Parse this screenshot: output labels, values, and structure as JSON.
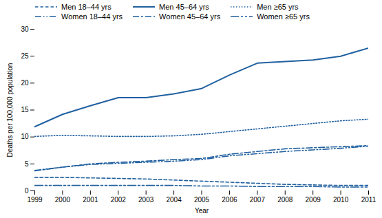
{
  "chart_data": {
    "type": "line",
    "x": [
      1999,
      2000,
      2001,
      2002,
      2003,
      2004,
      2005,
      2006,
      2007,
      2008,
      2009,
      2010,
      2011
    ],
    "series": [
      {
        "name": "Men 18–44 yrs",
        "line_style": "dashed",
        "values": [
          2.5,
          2.5,
          2.4,
          2.3,
          2.2,
          2.0,
          1.8,
          1.6,
          1.4,
          1.2,
          1.1,
          1.0,
          1.0
        ]
      },
      {
        "name": "Men 45–64 yrs",
        "line_style": "solid",
        "values": [
          11.9,
          14.2,
          15.8,
          17.3,
          17.3,
          18.0,
          19.0,
          21.5,
          23.7,
          24.0,
          24.3,
          25.0,
          26.5
        ]
      },
      {
        "name": "Men ≥65 yrs",
        "line_style": "dotted",
        "values": [
          10.1,
          10.3,
          10.2,
          10.1,
          10.1,
          10.2,
          10.5,
          11.0,
          11.5,
          12.0,
          12.5,
          13.0,
          13.3
        ]
      },
      {
        "name": "Women 18–44 yrs",
        "line_style": "dashdotdot",
        "values": [
          3.8,
          4.4,
          4.9,
          5.1,
          5.3,
          5.5,
          5.8,
          6.5,
          6.9,
          7.3,
          7.6,
          7.9,
          8.3
        ]
      },
      {
        "name": "Women 45–64 yrs",
        "line_style": "dashdot",
        "values": [
          3.7,
          4.4,
          5.0,
          5.3,
          5.5,
          5.8,
          6.0,
          6.8,
          7.3,
          7.8,
          8.0,
          8.2,
          8.4
        ]
      },
      {
        "name": "Women ≥65 yrs",
        "line_style": "longdashdotdot",
        "values": [
          1.0,
          1.0,
          1.0,
          1.0,
          1.0,
          1.0,
          0.9,
          0.9,
          0.8,
          0.8,
          0.8,
          0.7,
          0.7
        ]
      }
    ],
    "color": "#2060a0",
    "xlabel": "Year",
    "ylabel": "Deaths per 100,000 population",
    "xlim": [
      1999,
      2011
    ],
    "xticks": [
      1999,
      2000,
      2001,
      2002,
      2003,
      2004,
      2005,
      2006,
      2007,
      2008,
      2009,
      2010,
      2011
    ],
    "ylim": [
      0,
      30
    ],
    "yticks": [
      0,
      5,
      10,
      15,
      20,
      25,
      30
    ],
    "grid": false,
    "legend": "upper left"
  }
}
